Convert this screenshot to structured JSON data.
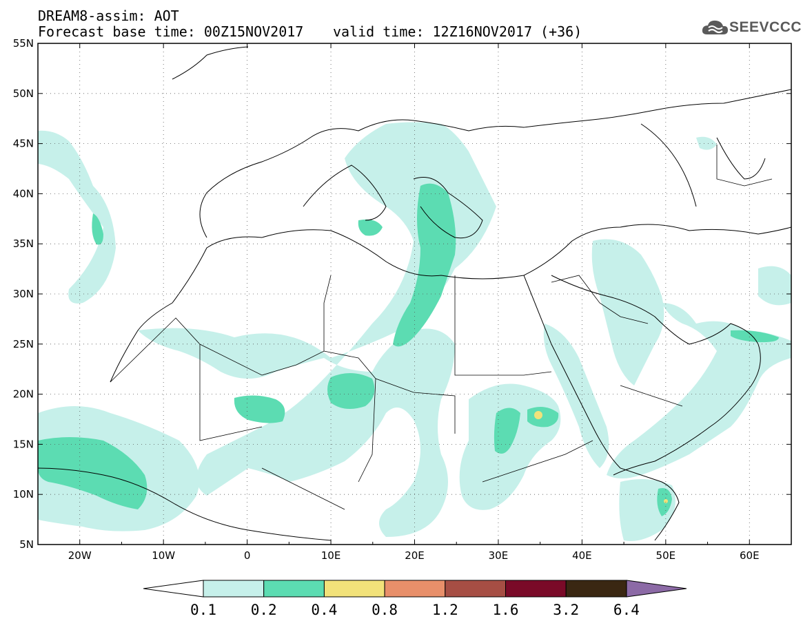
{
  "header": {
    "line1": "DREAM8-assim: AOT",
    "base_time": "Forecast base time: 00Z15NOV2017",
    "valid_time": "valid time: 12Z16NOV2017 (+36)",
    "logo_text": "SEEVCCC"
  },
  "map": {
    "lat_labels": [
      "55N",
      "50N",
      "45N",
      "40N",
      "35N",
      "30N",
      "25N",
      "20N",
      "15N",
      "10N",
      "5N"
    ],
    "lon_labels": [
      "20W",
      "10W",
      "0",
      "10E",
      "20E",
      "30E",
      "40E",
      "50E",
      "60E"
    ],
    "lat_range": [
      5,
      55
    ],
    "lon_range": [
      -25,
      65
    ]
  },
  "colorbar": {
    "labels": [
      "0.1",
      "0.2",
      "0.4",
      "0.8",
      "1.2",
      "1.6",
      "3.2",
      "6.4"
    ],
    "colors": [
      "#c6f0ea",
      "#5cdcb2",
      "#f2e27a",
      "#e88f6a",
      "#a64e44",
      "#7a0a28",
      "#3a2712",
      "#8c6aa6"
    ]
  }
}
